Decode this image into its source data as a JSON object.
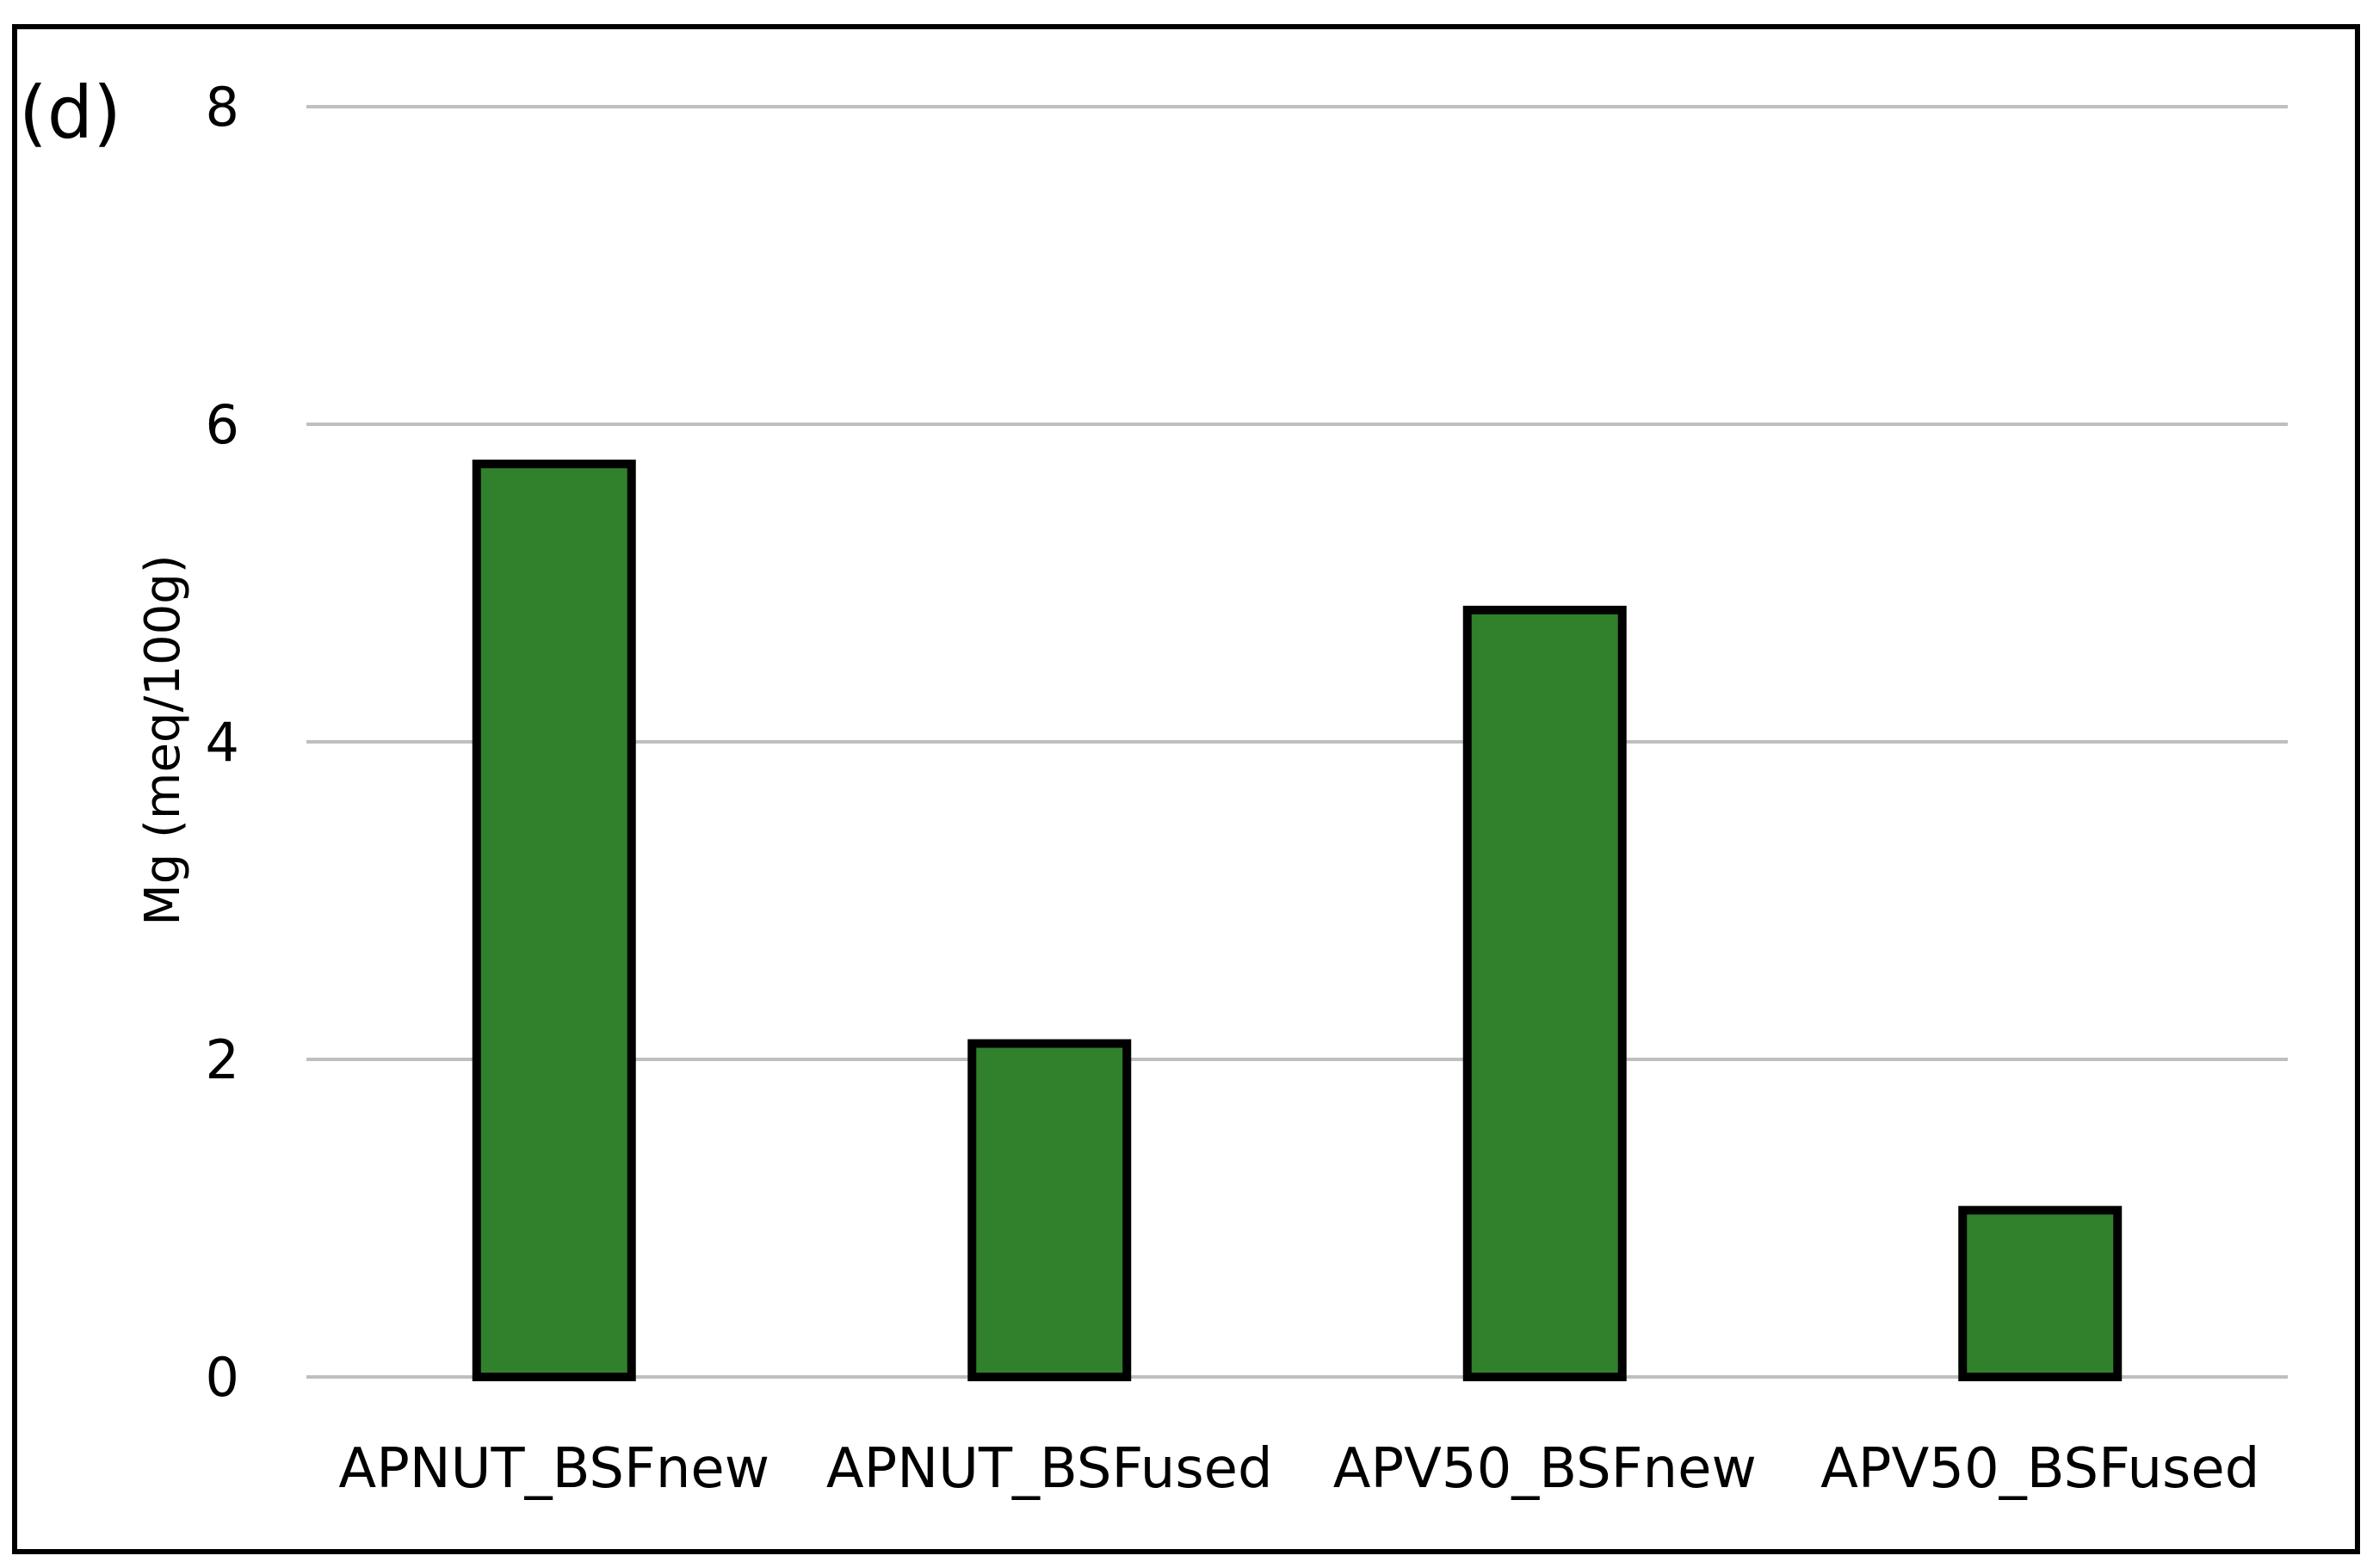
{
  "panel_label": "(d)",
  "chart_data": {
    "type": "bar",
    "categories": [
      "APNUT_BSFnew",
      "APNUT_BSFused",
      "APV50_BSFnew",
      "APV50_BSFused"
    ],
    "values": [
      5.75,
      2.1,
      4.83,
      1.05
    ],
    "title": "",
    "xlabel": "",
    "ylabel": "Mg (meq/100g)",
    "ylim": [
      0,
      8
    ],
    "yticks": [
      0,
      2,
      4,
      6,
      8
    ],
    "grid": true,
    "legend": "none",
    "colors": {
      "bar_fill": "#31802B",
      "bar_stroke": "#000000",
      "grid": "#BFBFBF"
    }
  }
}
